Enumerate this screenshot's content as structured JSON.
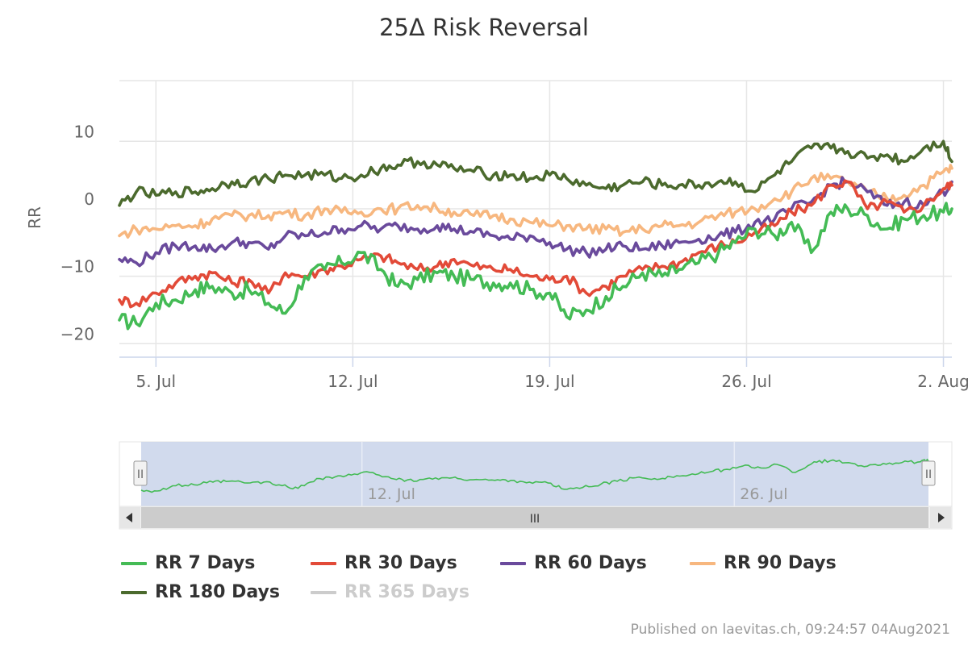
{
  "chart_data": {
    "type": "line",
    "title": "25Δ Risk Reversal",
    "ylabel": "RR",
    "xlabel": "",
    "ylim": [
      -22,
      19
    ],
    "yticks": [
      {
        "value": 10,
        "label": "10"
      },
      {
        "value": 0,
        "label": "0"
      },
      {
        "value": -10,
        "label": "−10"
      },
      {
        "value": -20,
        "label": "−20"
      }
    ],
    "x_range_days": [
      3.7,
      33.3
    ],
    "xticks": [
      {
        "day": 5,
        "label": "5. Jul"
      },
      {
        "day": 12,
        "label": "12. Jul"
      },
      {
        "day": 19,
        "label": "19. Jul"
      },
      {
        "day": 26,
        "label": "26. Jul"
      },
      {
        "day": 33,
        "label": "2. Aug"
      }
    ],
    "x_unit": "day of July 2021 (32 = 1 Aug)",
    "grid": true,
    "legend_position": "bottom",
    "series": [
      {
        "name": "RR 7 Days",
        "color": "#44bb55",
        "visible": true,
        "x": [
          3.7,
          4.3,
          5,
          5.7,
          6.4,
          7,
          7.7,
          8.3,
          9,
          9.6,
          10.3,
          11,
          11.6,
          12.3,
          13,
          13.6,
          14.3,
          15,
          15.6,
          16.3,
          17,
          17.6,
          18.3,
          19,
          19.6,
          20.3,
          21,
          21.6,
          22.3,
          23,
          23.6,
          24.3,
          25,
          25.6,
          26.3,
          27,
          27.6,
          28.3,
          29,
          29.6,
          30.3,
          31,
          31.6,
          32.3,
          33,
          33.3
        ],
        "y": [
          -16.5,
          -17,
          -14,
          -13.5,
          -12,
          -11.5,
          -12.5,
          -12,
          -14,
          -15.5,
          -10,
          -9,
          -8,
          -6.5,
          -9,
          -11.5,
          -10.5,
          -9.5,
          -10,
          -10.5,
          -11,
          -11,
          -12,
          -12.5,
          -16,
          -15,
          -13,
          -11.5,
          -9.5,
          -10,
          -9,
          -8,
          -6.5,
          -5,
          -3,
          -4,
          -2,
          -6.5,
          -0.5,
          0,
          -1,
          -3,
          -1.5,
          -1,
          -0.5,
          0
        ]
      },
      {
        "name": "RR 30 Days",
        "color": "#e24a38",
        "visible": true,
        "x": [
          3.7,
          4.3,
          5,
          5.7,
          6.4,
          7,
          7.7,
          8.3,
          9,
          9.6,
          10.3,
          11,
          11.6,
          12.3,
          13,
          13.6,
          14.3,
          15,
          15.6,
          16.3,
          17,
          17.6,
          18.3,
          19,
          19.6,
          20.3,
          21,
          21.6,
          22.3,
          23,
          23.6,
          24.3,
          25,
          25.6,
          26.3,
          27,
          27.6,
          28.3,
          29,
          29.6,
          30.3,
          31,
          31.6,
          32.3,
          33,
          33.3
        ],
        "y": [
          -13.5,
          -14,
          -12.5,
          -11,
          -10,
          -9.5,
          -11,
          -10.5,
          -12.5,
          -9.5,
          -10,
          -9,
          -8.5,
          -7.5,
          -7,
          -8,
          -9,
          -8.5,
          -7.5,
          -8.5,
          -9,
          -9,
          -10,
          -10.5,
          -10,
          -12.5,
          -11.5,
          -10,
          -9,
          -8.5,
          -8,
          -6.5,
          -5.5,
          -5,
          -3.5,
          -2.5,
          -0.5,
          0.5,
          3.5,
          4,
          0,
          1,
          -0.5,
          0.5,
          3,
          3.5
        ]
      },
      {
        "name": "RR 60 Days",
        "color": "#6a4a9c",
        "visible": true,
        "x": [
          3.7,
          4.3,
          5,
          5.7,
          6.4,
          7,
          7.7,
          8.3,
          9,
          9.6,
          10.3,
          11,
          11.6,
          12.3,
          13,
          13.6,
          14.3,
          15,
          15.6,
          16.3,
          17,
          17.6,
          18.3,
          19,
          19.6,
          20.3,
          21,
          21.6,
          22.3,
          23,
          23.6,
          24.3,
          25,
          25.6,
          26.3,
          27,
          27.6,
          28.3,
          29,
          29.6,
          30.3,
          31,
          31.6,
          32.3,
          33,
          33.3
        ],
        "y": [
          -7.5,
          -8,
          -6.5,
          -5.5,
          -5.5,
          -6,
          -5,
          -5,
          -6,
          -4,
          -4,
          -3.5,
          -3,
          -2.5,
          -3,
          -2.5,
          -3,
          -2.5,
          -3,
          -3.5,
          -4,
          -4.5,
          -4,
          -5,
          -6,
          -6.5,
          -6,
          -5.5,
          -6,
          -5.5,
          -5,
          -4.5,
          -4,
          -3.5,
          -2,
          -1.5,
          0,
          1,
          3.5,
          4,
          2.5,
          0.5,
          1,
          0.5,
          2.5,
          4
        ]
      },
      {
        "name": "RR 90 Days",
        "color": "#f7b77f",
        "visible": true,
        "x": [
          3.7,
          4.3,
          5,
          5.7,
          6.4,
          7,
          7.7,
          8.3,
          9,
          9.6,
          10.3,
          11,
          11.6,
          12.3,
          13,
          13.6,
          14.3,
          15,
          15.6,
          16.3,
          17,
          17.6,
          18.3,
          19,
          19.6,
          20.3,
          21,
          21.6,
          22.3,
          23,
          23.6,
          24.3,
          25,
          25.6,
          26.3,
          27,
          27.6,
          28.3,
          29,
          29.6,
          30.3,
          31,
          31.6,
          32.3,
          33,
          33.3
        ],
        "y": [
          -4,
          -3,
          -3,
          -2.5,
          -2.5,
          -1.5,
          -1,
          -1,
          -1,
          -0.5,
          -1,
          0,
          -0.5,
          -0.5,
          0,
          0,
          0.5,
          0,
          -0.5,
          -1,
          -1,
          -1.5,
          -2,
          -2.5,
          -2.5,
          -3,
          -3,
          -3.5,
          -3,
          -2.5,
          -2.5,
          -2,
          -1,
          -0.5,
          0,
          1.5,
          2.5,
          4.5,
          4.5,
          4,
          2.5,
          1.5,
          2,
          3.5,
          5.5,
          6
        ]
      },
      {
        "name": "RR 180 Days",
        "color": "#4b6a2d",
        "visible": true,
        "x": [
          3.7,
          4.3,
          5,
          5.7,
          6.4,
          7,
          7.7,
          8.3,
          9,
          9.6,
          10.3,
          11,
          11.6,
          12.3,
          13,
          13.6,
          14.3,
          15,
          15.6,
          16.3,
          17,
          17.6,
          18.3,
          19,
          19.6,
          20.3,
          21,
          21.6,
          22.3,
          23,
          23.6,
          24.3,
          25,
          25.6,
          26.3,
          27,
          27.6,
          28.3,
          29,
          29.6,
          30.3,
          31,
          31.6,
          32.3,
          33,
          33.3
        ],
        "y": [
          0.5,
          2.5,
          2,
          2.5,
          2.5,
          3,
          4,
          4,
          4.5,
          5,
          5,
          5,
          4.5,
          5,
          6,
          6.5,
          7,
          6.5,
          6,
          5.5,
          5,
          5,
          4.5,
          5,
          4.5,
          3.5,
          3,
          3.5,
          4,
          3.5,
          3.5,
          3.5,
          4,
          4,
          2.5,
          5,
          7,
          9,
          9,
          8.5,
          7.5,
          8,
          7,
          9,
          10,
          7
        ]
      },
      {
        "name": "RR 365 Days",
        "color": "#cccccc",
        "visible": false,
        "x": [],
        "y": []
      }
    ]
  },
  "navigator": {
    "series_name": "RR 7 Days",
    "color": "#44bb55",
    "xticks": [
      {
        "day": 12,
        "label": "12. Jul"
      },
      {
        "day": 26,
        "label": "26. Jul"
      }
    ],
    "handle_glyph": "II",
    "scroll_glyph": "III",
    "left_arrow": "◀",
    "right_arrow": "▶"
  },
  "credits": "Published on laevitas.ch, 09:24:57 04Aug2021"
}
